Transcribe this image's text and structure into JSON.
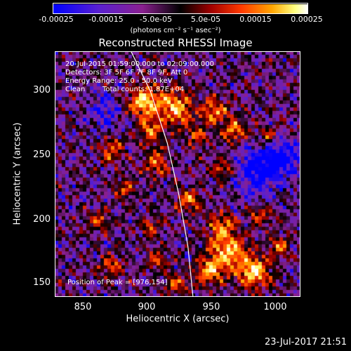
{
  "colorbar": {
    "ticks": [
      "-0.00025",
      "-0.00015",
      "-5.0e-05",
      "5.0e-05",
      "0.00015",
      "0.00025"
    ],
    "unit_label": "(photons cm⁻² s⁻¹ asec⁻²)",
    "colors": [
      "#0000ff",
      "#5a20d0",
      "#8a2090",
      "#000000",
      "#a00000",
      "#ff3a00",
      "#ffa500",
      "#ffff80",
      "#ffffff"
    ]
  },
  "chart_data": {
    "type": "heatmap",
    "title": "Reconstructed RHESSI Image",
    "xlabel": "Heliocentric X (arcsec)",
    "ylabel": "Heliocentric Y (arcsec)",
    "xlim": [
      826,
      1016
    ],
    "ylim": [
      141,
      331
    ],
    "x_ticks": [
      "850",
      "900",
      "950",
      "1000"
    ],
    "y_ticks": [
      "150",
      "200",
      "250",
      "300"
    ],
    "x_tick_values": [
      850,
      900,
      950,
      1000
    ],
    "y_tick_values": [
      150,
      200,
      250,
      300
    ],
    "annotations": {
      "time": "20-Jul-2015 01:59:00.000 to 02:09:00.000",
      "detectors": "Detectors: 3F 5F 6F 7F 8F 9F, Att 0",
      "energy": "Energy Range: 25.0 - 50.0 keV",
      "clean": "Clean",
      "counts": "Total counts: 1.87E+04",
      "peak": "Position of Peak = [976,154]"
    },
    "limb_color": "#ffffff",
    "peak_position": [
      976,
      154
    ]
  },
  "footer": {
    "timestamp": "23-Jul-2017 21:51"
  }
}
